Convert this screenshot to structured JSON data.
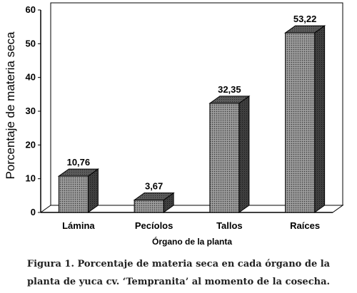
{
  "chart_data": {
    "type": "bar",
    "categories": [
      "Lámina",
      "Pecíolos",
      "Tallos",
      "Raíces"
    ],
    "values": [
      10.76,
      3.67,
      32.35,
      53.22
    ],
    "data_labels": [
      "10,76",
      "3,67",
      "32,35",
      "53,22"
    ],
    "xlabel": "Órgano de la planta",
    "ylabel": "Porcentaje de materia seca",
    "ylim": [
      0,
      60
    ],
    "yticks": [
      "0",
      "10",
      "20",
      "30",
      "40",
      "50",
      "60"
    ],
    "grid": false,
    "style": "3d-bars",
    "bar_color": "#7a7a7a"
  },
  "caption": {
    "line1": "Figura 1. Porcentaje de materia seca en cada órgano de la",
    "line2": "planta de yuca cv. ‘Tempranita’ al momento de la cosecha."
  }
}
